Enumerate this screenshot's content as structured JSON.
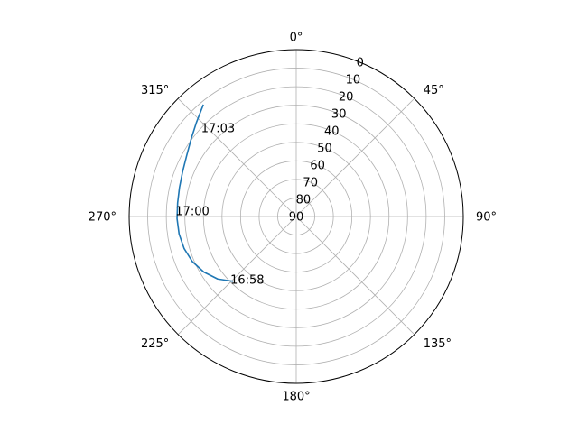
{
  "chart_data": {
    "type": "polar-line",
    "theta_zero_location": "N",
    "theta_direction": "clockwise",
    "radial_axis_inverted": true,
    "r_range": [
      90,
      0
    ],
    "angle_ticks": [
      "0°",
      "45°",
      "90°",
      "135°",
      "180°",
      "225°",
      "270°",
      "315°"
    ],
    "angle_tick_values": [
      0,
      45,
      90,
      135,
      180,
      225,
      270,
      315
    ],
    "radial_ticks": [
      "0",
      "10",
      "20",
      "30",
      "40",
      "50",
      "60",
      "70",
      "80",
      "90"
    ],
    "radial_tick_values": [
      0,
      10,
      20,
      30,
      40,
      50,
      60,
      70,
      80,
      90
    ],
    "grid": true,
    "series": [
      {
        "color": "#1f77b4",
        "points": [
          {
            "azimuth": 224.6,
            "elevation": 41.0
          },
          {
            "azimuth": 231.5,
            "elevation": 35.9
          },
          {
            "azimuth": 239.0,
            "elevation": 31.9
          },
          {
            "azimuth": 246.5,
            "elevation": 29.0
          },
          {
            "azimuth": 254.0,
            "elevation": 27.2
          },
          {
            "azimuth": 261.5,
            "elevation": 26.2
          },
          {
            "azimuth": 269.0,
            "elevation": 25.8
          },
          {
            "azimuth": 276.5,
            "elevation": 25.7
          },
          {
            "azimuth": 284.0,
            "elevation": 25.2
          },
          {
            "azimuth": 291.5,
            "elevation": 24.2
          },
          {
            "azimuth": 299.0,
            "elevation": 22.5
          },
          {
            "azimuth": 306.5,
            "elevation": 19.6
          },
          {
            "azimuth": 313.5,
            "elevation": 16.0
          },
          {
            "azimuth": 320.1,
            "elevation": 11.8
          }
        ]
      }
    ],
    "annotations": [
      {
        "text": "16:58",
        "azimuth": 226.1,
        "elevation": 40.8
      },
      {
        "text": "17:00",
        "azimuth": 272.5,
        "elevation": 24.9
      },
      {
        "text": "17:03",
        "azimuth": 312.9,
        "elevation": 20.1
      }
    ]
  }
}
